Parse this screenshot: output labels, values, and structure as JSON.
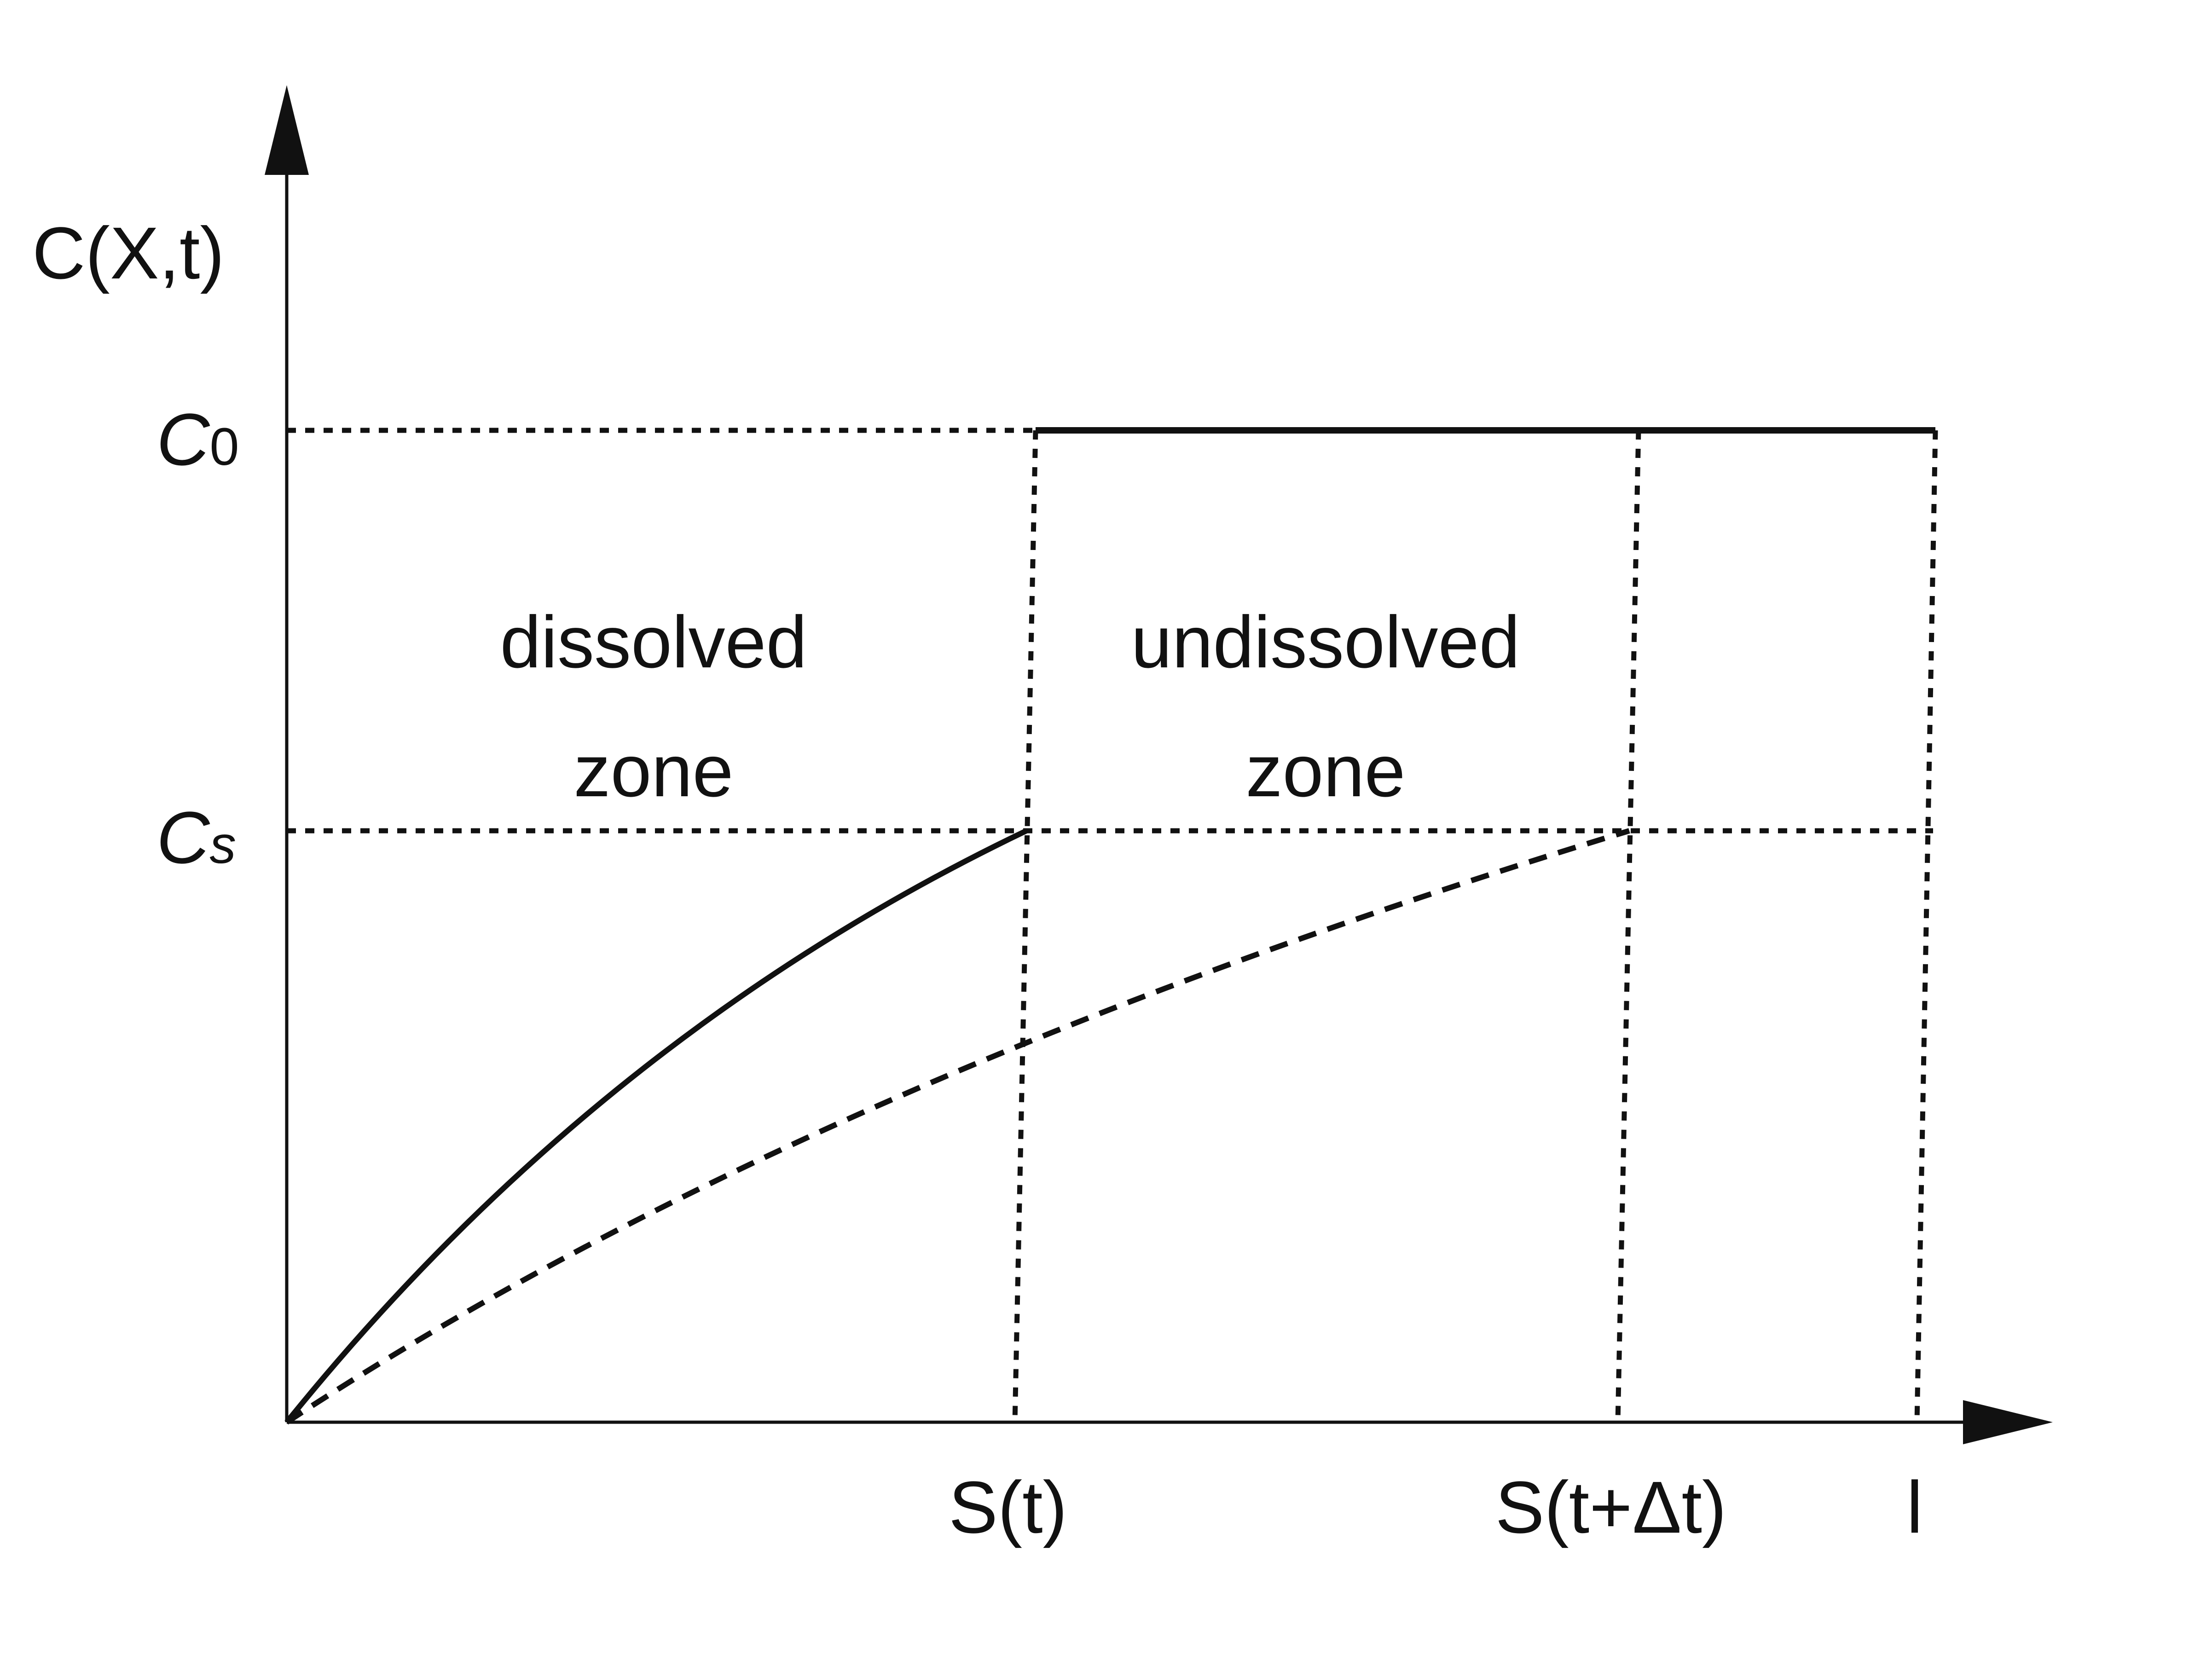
{
  "diagram": {
    "y_axis_label": "C(X,t)",
    "c0_label": {
      "main": "C",
      "sub": "0"
    },
    "cs_label": {
      "main": "C",
      "sub": "s"
    },
    "dissolved_zone": {
      "line1": "dissolved",
      "line2": "zone"
    },
    "undissolved_zone": {
      "line1": "undissolved",
      "line2": "zone"
    },
    "x_ticks": {
      "s_t": "S(t)",
      "s_t_dt": "S(t+Δt)",
      "l": "l"
    },
    "colors": {
      "ink": "#111111",
      "background": "#ffffff"
    }
  }
}
